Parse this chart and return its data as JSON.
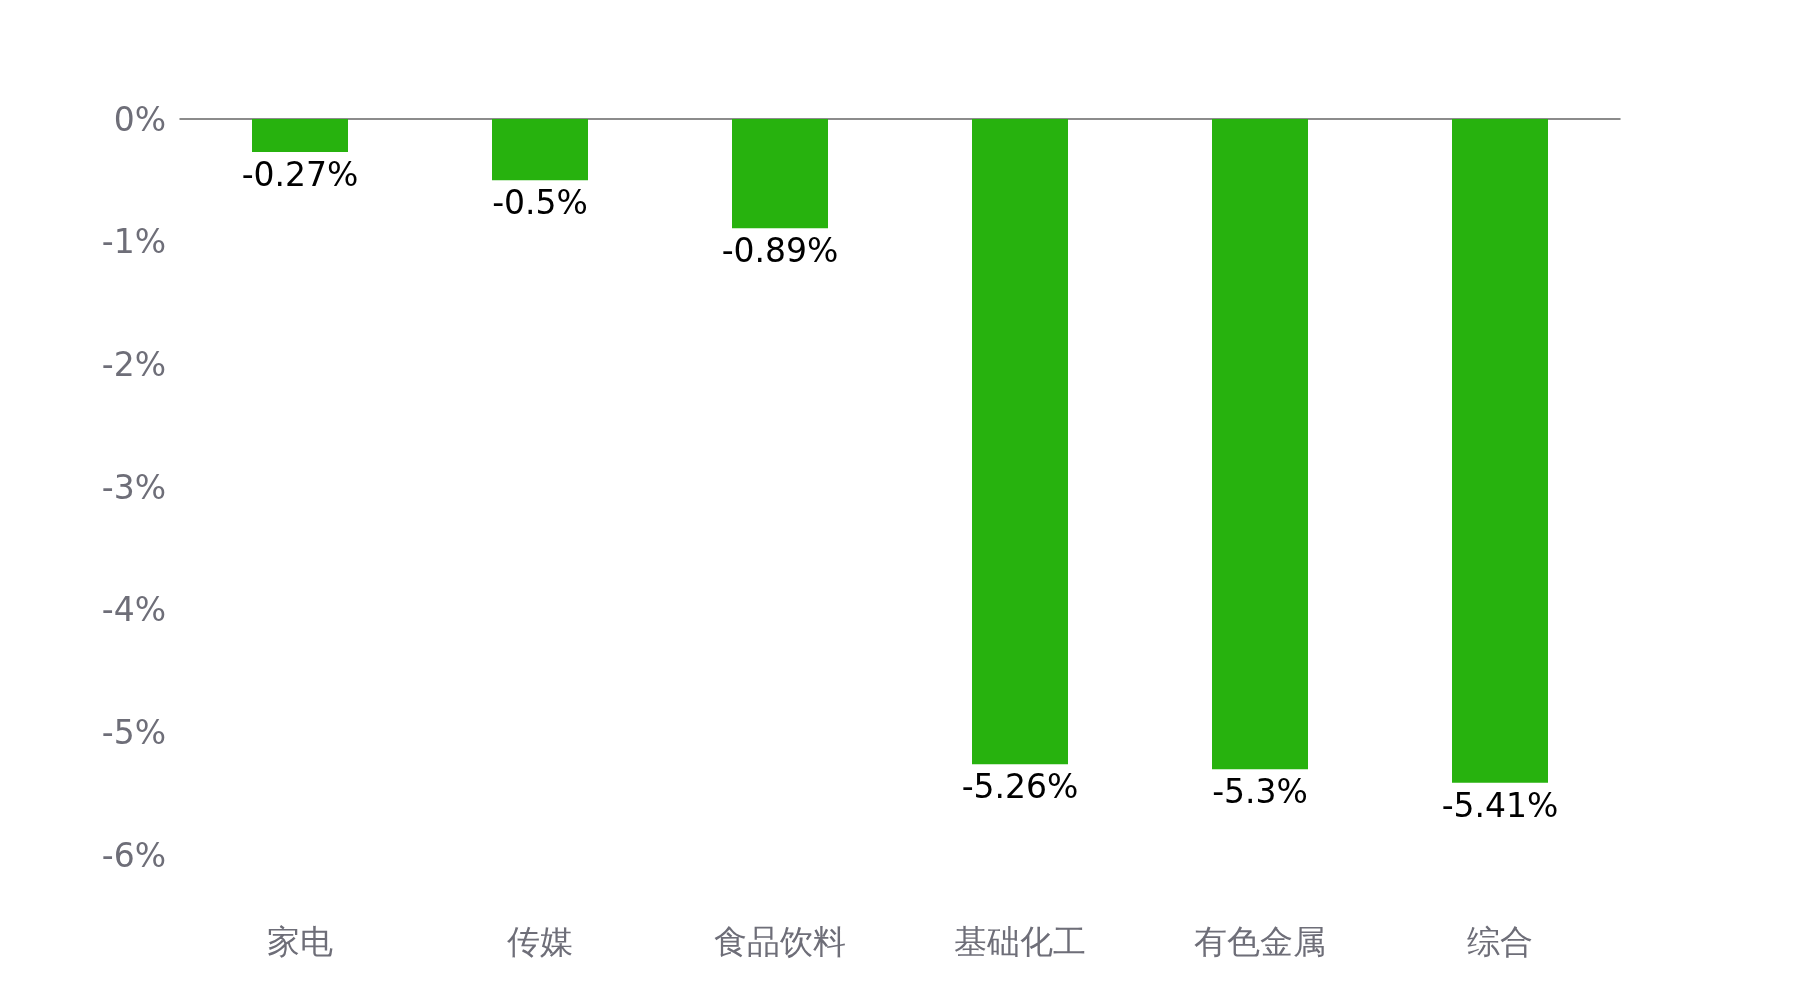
{
  "chart_data": {
    "type": "bar",
    "categories": [
      "家电",
      "传媒",
      "食品饮料",
      "基础化工",
      "有色金属",
      "综合"
    ],
    "values": [
      -0.27,
      -0.5,
      -0.89,
      -5.26,
      -5.3,
      -5.41
    ],
    "value_labels": [
      "-0.27%",
      "-0.5%",
      "-0.89%",
      "-5.26%",
      "-5.3%",
      "-5.41%"
    ],
    "color": "#27b20e",
    "ylim": [
      -6,
      0
    ],
    "yticks": [
      {
        "value": 0,
        "label": "0%"
      },
      {
        "value": -1,
        "label": "-1%"
      },
      {
        "value": -2,
        "label": "-2%"
      },
      {
        "value": -3,
        "label": "-3%"
      },
      {
        "value": -4,
        "label": "-4%"
      },
      {
        "value": -5,
        "label": "-5%"
      },
      {
        "value": -6,
        "label": "-6%"
      }
    ],
    "grid": false
  }
}
